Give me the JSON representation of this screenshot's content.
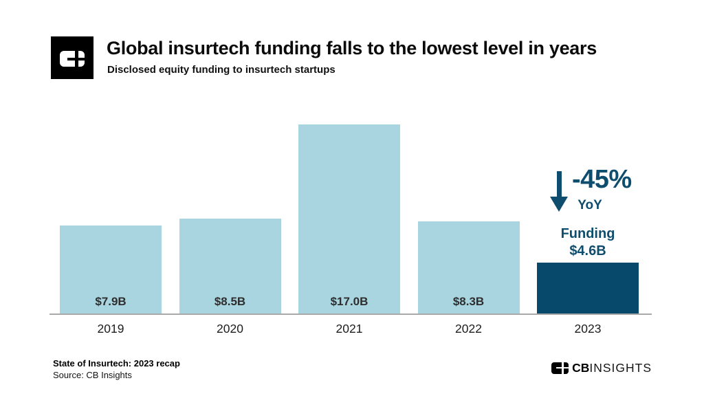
{
  "header": {
    "title": "Global insurtech funding falls to the lowest level in years",
    "subtitle": "Disclosed equity funding to insurtech startups"
  },
  "chart_data": {
    "type": "bar",
    "title": "Global insurtech funding falls to the lowest level in years",
    "subtitle": "Disclosed equity funding to insurtech startups",
    "categories": [
      "2019",
      "2020",
      "2021",
      "2022",
      "2023"
    ],
    "values": [
      7.9,
      8.5,
      17.0,
      8.3,
      4.6
    ],
    "value_labels": [
      "$7.9B",
      "$8.5B",
      "$17.0B",
      "$8.3B",
      "$4.6B"
    ],
    "xlabel": "",
    "ylabel": "",
    "ylim": [
      0,
      17.0
    ],
    "grid": false,
    "legend": false,
    "bar_color_default": "#A9D5E0",
    "bar_color_highlight": "#07496A",
    "highlight_index": 4
  },
  "annotation": {
    "pct": "-45%",
    "yoy": "YoY",
    "funding_label": "Funding",
    "funding_value": "$4.6B",
    "color": "#0E4D6E"
  },
  "footer": {
    "report": "State of Insurtech: 2023 recap",
    "source": "Source: CB Insights",
    "brand_bold": "CB",
    "brand_light": "INSIGHTS"
  },
  "icons": {
    "logo_mark": "cbinsights-mark",
    "arrow": "down-arrow-icon"
  },
  "colors": {
    "background": "#FFFFFF",
    "axis": "#A9A9A9",
    "bar_light": "#A9D5E0",
    "bar_dark": "#07496A",
    "annotation_text": "#0E4D6E",
    "value_label": "#2E2E2E",
    "title_text": "#0B0B0B"
  }
}
